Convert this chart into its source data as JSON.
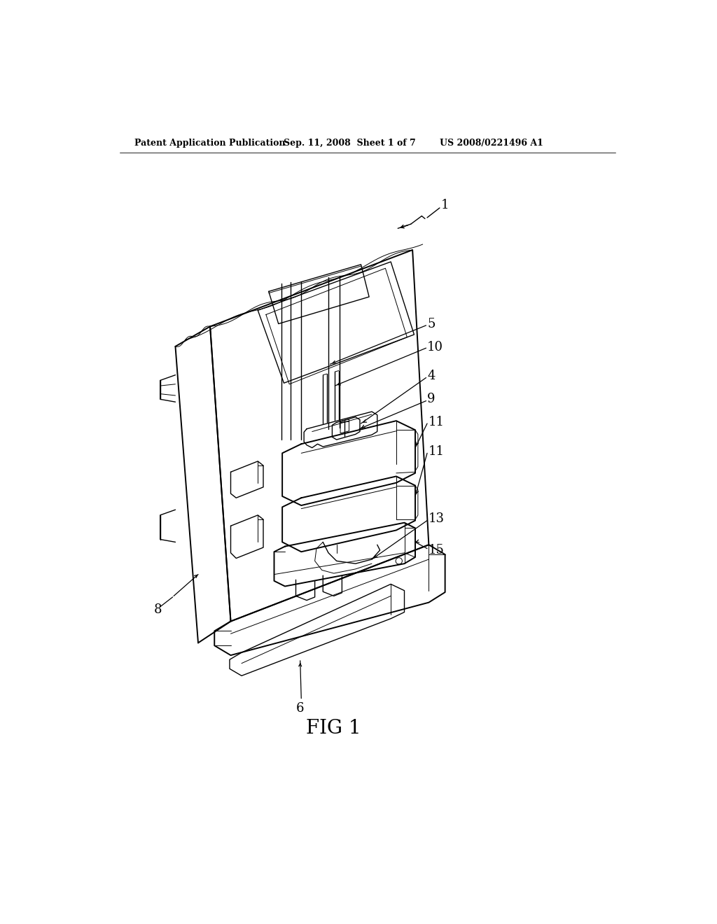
{
  "bg_color": "#ffffff",
  "header_left": "Patent Application Publication",
  "header_mid": "Sep. 11, 2008  Sheet 1 of 7",
  "header_right": "US 2008/0221496 A1",
  "fig_label": "FIG 1",
  "line_color": "#000000",
  "lw": 1.4,
  "lw_thin": 0.7,
  "lw_med": 1.0,
  "ref_fontsize": 12,
  "header_fontsize": 9,
  "fig_fontsize": 20
}
